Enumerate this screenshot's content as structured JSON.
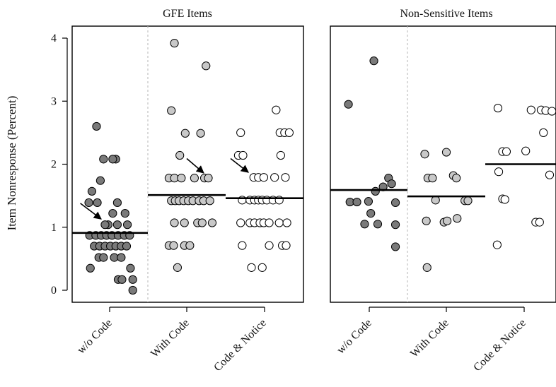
{
  "chart_data": {
    "type": "scatter",
    "ylabel": "Item Nonresponse (Percent)",
    "ylim": [
      -0.2,
      4.2
    ],
    "yticks": [
      0,
      1,
      2,
      3,
      4
    ],
    "grid": false,
    "legend": "none",
    "colors": {
      "w/o Code": "#7a7a7a",
      "With Code": "#c8c8c8",
      "Code & Notice": "#ffffff"
    },
    "panels": [
      {
        "title": "GFE Items",
        "categories": [
          "w/o Code",
          "With Code",
          "Code & Notice"
        ],
        "series": [
          {
            "category": "w/o Code",
            "median": 0.91,
            "points": [
              {
                "x": -0.17,
                "y": 2.6
              },
              {
                "x": -0.08,
                "y": 2.08
              },
              {
                "x": 0.08,
                "y": 2.08
              },
              {
                "x": 0.04,
                "y": 2.08
              },
              {
                "x": -0.12,
                "y": 1.74
              },
              {
                "x": -0.23,
                "y": 1.57
              },
              {
                "x": -0.27,
                "y": 1.39
              },
              {
                "x": -0.16,
                "y": 1.39
              },
              {
                "x": 0.1,
                "y": 1.39
              },
              {
                "x": 0.04,
                "y": 1.22
              },
              {
                "x": 0.2,
                "y": 1.22
              },
              {
                "x": -0.02,
                "y": 1.04
              },
              {
                "x": -0.06,
                "y": 1.04
              },
              {
                "x": 0.1,
                "y": 1.04
              },
              {
                "x": 0.23,
                "y": 1.04
              },
              {
                "x": -0.26,
                "y": 0.87
              },
              {
                "x": -0.18,
                "y": 0.87
              },
              {
                "x": -0.11,
                "y": 0.87
              },
              {
                "x": -0.04,
                "y": 0.87
              },
              {
                "x": 0.03,
                "y": 0.87
              },
              {
                "x": 0.11,
                "y": 0.87
              },
              {
                "x": 0.19,
                "y": 0.87
              },
              {
                "x": 0.26,
                "y": 0.87
              },
              {
                "x": -0.2,
                "y": 0.7
              },
              {
                "x": -0.13,
                "y": 0.7
              },
              {
                "x": -0.06,
                "y": 0.7
              },
              {
                "x": 0.01,
                "y": 0.7
              },
              {
                "x": 0.08,
                "y": 0.7
              },
              {
                "x": 0.15,
                "y": 0.7
              },
              {
                "x": 0.22,
                "y": 0.7
              },
              {
                "x": -0.14,
                "y": 0.52
              },
              {
                "x": -0.08,
                "y": 0.52
              },
              {
                "x": 0.06,
                "y": 0.52
              },
              {
                "x": 0.15,
                "y": 0.52
              },
              {
                "x": -0.25,
                "y": 0.35
              },
              {
                "x": 0.27,
                "y": 0.35
              },
              {
                "x": 0.11,
                "y": 0.17
              },
              {
                "x": 0.16,
                "y": 0.17
              },
              {
                "x": 0.3,
                "y": 0.17
              },
              {
                "x": 0.3,
                "y": 0.0
              }
            ]
          },
          {
            "category": "With Code",
            "median": 1.51,
            "points": [
              {
                "x": -0.16,
                "y": 3.92
              },
              {
                "x": 0.25,
                "y": 3.56
              },
              {
                "x": -0.2,
                "y": 2.85
              },
              {
                "x": -0.02,
                "y": 2.49
              },
              {
                "x": 0.18,
                "y": 2.49
              },
              {
                "x": -0.09,
                "y": 2.14
              },
              {
                "x": -0.23,
                "y": 1.78
              },
              {
                "x": -0.16,
                "y": 1.78
              },
              {
                "x": -0.07,
                "y": 1.78
              },
              {
                "x": 0.1,
                "y": 1.78
              },
              {
                "x": 0.23,
                "y": 1.78
              },
              {
                "x": 0.28,
                "y": 1.78
              },
              {
                "x": -0.2,
                "y": 1.42
              },
              {
                "x": -0.15,
                "y": 1.42
              },
              {
                "x": -0.1,
                "y": 1.42
              },
              {
                "x": -0.04,
                "y": 1.42
              },
              {
                "x": 0.02,
                "y": 1.42
              },
              {
                "x": 0.08,
                "y": 1.42
              },
              {
                "x": 0.16,
                "y": 1.42
              },
              {
                "x": 0.22,
                "y": 1.42
              },
              {
                "x": 0.3,
                "y": 1.42
              },
              {
                "x": -0.16,
                "y": 1.07
              },
              {
                "x": -0.03,
                "y": 1.07
              },
              {
                "x": 0.14,
                "y": 1.07
              },
              {
                "x": 0.2,
                "y": 1.07
              },
              {
                "x": 0.33,
                "y": 1.07
              },
              {
                "x": -0.23,
                "y": 0.71
              },
              {
                "x": -0.17,
                "y": 0.71
              },
              {
                "x": -0.03,
                "y": 0.71
              },
              {
                "x": 0.04,
                "y": 0.71
              },
              {
                "x": -0.12,
                "y": 0.36
              }
            ]
          },
          {
            "category": "Code & Notice",
            "median": 1.46,
            "points": [
              {
                "x": 0.15,
                "y": 2.86
              },
              {
                "x": -0.31,
                "y": 2.5
              },
              {
                "x": 0.2,
                "y": 2.5
              },
              {
                "x": 0.26,
                "y": 2.5
              },
              {
                "x": 0.32,
                "y": 2.5
              },
              {
                "x": -0.34,
                "y": 2.14
              },
              {
                "x": -0.28,
                "y": 2.14
              },
              {
                "x": 0.21,
                "y": 2.14
              },
              {
                "x": -0.14,
                "y": 1.79
              },
              {
                "x": -0.08,
                "y": 1.79
              },
              {
                "x": -0.01,
                "y": 1.79
              },
              {
                "x": 0.13,
                "y": 1.79
              },
              {
                "x": 0.27,
                "y": 1.79
              },
              {
                "x": -0.29,
                "y": 1.43
              },
              {
                "x": -0.19,
                "y": 1.43
              },
              {
                "x": -0.13,
                "y": 1.43
              },
              {
                "x": -0.08,
                "y": 1.43
              },
              {
                "x": -0.03,
                "y": 1.43
              },
              {
                "x": 0.03,
                "y": 1.43
              },
              {
                "x": 0.11,
                "y": 1.43
              },
              {
                "x": 0.19,
                "y": 1.43
              },
              {
                "x": -0.31,
                "y": 1.07
              },
              {
                "x": -0.19,
                "y": 1.07
              },
              {
                "x": -0.13,
                "y": 1.07
              },
              {
                "x": -0.06,
                "y": 1.07
              },
              {
                "x": -0.01,
                "y": 1.07
              },
              {
                "x": 0.06,
                "y": 1.07
              },
              {
                "x": 0.19,
                "y": 1.07
              },
              {
                "x": 0.29,
                "y": 1.07
              },
              {
                "x": -0.29,
                "y": 0.71
              },
              {
                "x": 0.06,
                "y": 0.71
              },
              {
                "x": 0.23,
                "y": 0.71
              },
              {
                "x": 0.28,
                "y": 0.71
              },
              {
                "x": -0.17,
                "y": 0.36
              },
              {
                "x": -0.03,
                "y": 0.36
              }
            ]
          }
        ],
        "arrows": [
          {
            "category": "w/o Code",
            "from": {
              "x": -0.38,
              "y": 1.38
            },
            "to": {
              "x": -0.11,
              "y": 1.13
            }
          },
          {
            "category": "With Code",
            "from": {
              "x": 0.0,
              "y": 2.09
            },
            "to": {
              "x": 0.22,
              "y": 1.86
            }
          },
          {
            "category": "Code & Notice",
            "from": {
              "x": -0.44,
              "y": 2.09
            },
            "to": {
              "x": -0.21,
              "y": 1.87
            }
          }
        ]
      },
      {
        "title": "Non-Sensitive Items",
        "categories": [
          "w/o Code",
          "With Code",
          "Code & Notice"
        ],
        "series": [
          {
            "category": "w/o Code",
            "median": 1.59,
            "points": [
              {
                "x": -0.27,
                "y": 2.95
              },
              {
                "x": 0.06,
                "y": 3.64
              },
              {
                "x": 0.25,
                "y": 1.78
              },
              {
                "x": 0.29,
                "y": 1.69
              },
              {
                "x": 0.18,
                "y": 1.64
              },
              {
                "x": 0.08,
                "y": 1.57
              },
              {
                "x": -0.25,
                "y": 1.4
              },
              {
                "x": -0.16,
                "y": 1.4
              },
              {
                "x": -0.01,
                "y": 1.41
              },
              {
                "x": 0.34,
                "y": 1.39
              },
              {
                "x": 0.02,
                "y": 1.22
              },
              {
                "x": -0.06,
                "y": 1.05
              },
              {
                "x": 0.11,
                "y": 1.05
              },
              {
                "x": 0.34,
                "y": 1.04
              },
              {
                "x": 0.34,
                "y": 0.69
              }
            ]
          },
          {
            "category": "With Code",
            "median": 1.49,
            "points": [
              {
                "x": -0.28,
                "y": 2.16
              },
              {
                "x": 0.0,
                "y": 2.19
              },
              {
                "x": -0.24,
                "y": 1.78
              },
              {
                "x": -0.18,
                "y": 1.78
              },
              {
                "x": 0.09,
                "y": 1.82
              },
              {
                "x": 0.13,
                "y": 1.78
              },
              {
                "x": -0.14,
                "y": 1.43
              },
              {
                "x": 0.24,
                "y": 1.42
              },
              {
                "x": 0.28,
                "y": 1.42
              },
              {
                "x": -0.26,
                "y": 1.1
              },
              {
                "x": -0.03,
                "y": 1.08
              },
              {
                "x": 0.01,
                "y": 1.1
              },
              {
                "x": 0.14,
                "y": 1.14
              },
              {
                "x": -0.25,
                "y": 0.36
              }
            ]
          },
          {
            "category": "Code & Notice",
            "median": 2.0,
            "points": [
              {
                "x": -0.34,
                "y": 2.89
              },
              {
                "x": 0.09,
                "y": 2.86
              },
              {
                "x": 0.22,
                "y": 2.86
              },
              {
                "x": 0.28,
                "y": 2.85
              },
              {
                "x": 0.36,
                "y": 2.84
              },
              {
                "x": 0.25,
                "y": 2.5
              },
              {
                "x": -0.28,
                "y": 2.2
              },
              {
                "x": -0.23,
                "y": 2.2
              },
              {
                "x": 0.02,
                "y": 2.21
              },
              {
                "x": -0.33,
                "y": 1.88
              },
              {
                "x": 0.33,
                "y": 1.83
              },
              {
                "x": -0.28,
                "y": 1.45
              },
              {
                "x": -0.25,
                "y": 1.44
              },
              {
                "x": 0.15,
                "y": 1.08
              },
              {
                "x": 0.2,
                "y": 1.08
              },
              {
                "x": -0.35,
                "y": 0.72
              }
            ]
          }
        ],
        "arrows": []
      }
    ]
  }
}
